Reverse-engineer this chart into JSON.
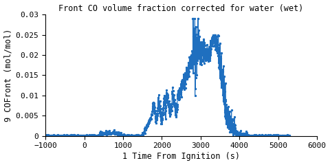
{
  "title": "Front CO volume fraction corrected for water (wet)",
  "xlabel": "1 Time From Ignition (s)",
  "ylabel": "9 COFront (mol/mol)",
  "xlim": [
    -1000,
    6000
  ],
  "ylim": [
    0,
    0.03
  ],
  "xticks": [
    -1000,
    0,
    1000,
    2000,
    3000,
    4000,
    5000,
    6000
  ],
  "yticks": [
    0,
    0.005,
    0.01,
    0.015,
    0.02,
    0.025,
    0.03
  ],
  "ytick_labels": [
    "0",
    "0.005",
    "0.01",
    "0.015",
    "0.02",
    "0.025",
    "0.03"
  ],
  "line_color": "#1f6fbf",
  "marker": "*",
  "markersize": 2,
  "linewidth": 0.8,
  "bg_color": "#ffffff",
  "figsize": [
    4.8,
    2.4
  ],
  "dpi": 100,
  "title_fontsize": 8.5,
  "label_fontsize": 8.5,
  "tick_fontsize": 8
}
